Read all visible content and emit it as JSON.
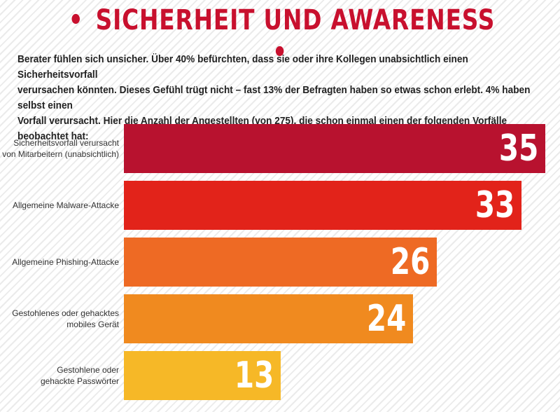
{
  "header": {
    "title": "SICHERHEIT UND AWARENESS",
    "bullet": "•"
  },
  "intro": {
    "lines": [
      "Berater fühlen sich unsicher. Über 40% befürchten, dass sie oder ihre Kollegen unabsichtlich einen Sicherheitsvorfall",
      "verursachen könnten. Dieses Gefühl trügt nicht – fast 13% der Befragten haben so etwas schon erlebt. 4% haben selbst einen",
      "Vorfall verursacht. Hier die Anzahl der Angestellten (von 275), die schon einmal einen der folgenden Vorfälle beobachtet hat:"
    ]
  },
  "colors": {
    "title": "#c8102e",
    "bars": [
      "#b8122f",
      "#e2231a",
      "#ee6a24",
      "#f08a1f",
      "#f6b827"
    ]
  },
  "chart_data": {
    "type": "bar",
    "orientation": "horizontal",
    "categories": [
      [
        "Sicherheitsvorfall verursacht",
        "von Mitarbeitern (unabsichtlich)"
      ],
      [
        "Allgemeine Malware-Attacke"
      ],
      [
        "Allgemeine Phishing-Attacke"
      ],
      [
        "Gestohlenes oder gehacktes",
        "mobiles Gerät"
      ],
      [
        "Gestohlene oder",
        "gehackte Passwörter"
      ]
    ],
    "values": [
      35,
      33,
      26,
      24,
      13
    ],
    "xlim": [
      0,
      35
    ],
    "grid": false,
    "legend": "none",
    "data_labels": [
      "35",
      "33",
      "26",
      "24",
      "13"
    ]
  }
}
